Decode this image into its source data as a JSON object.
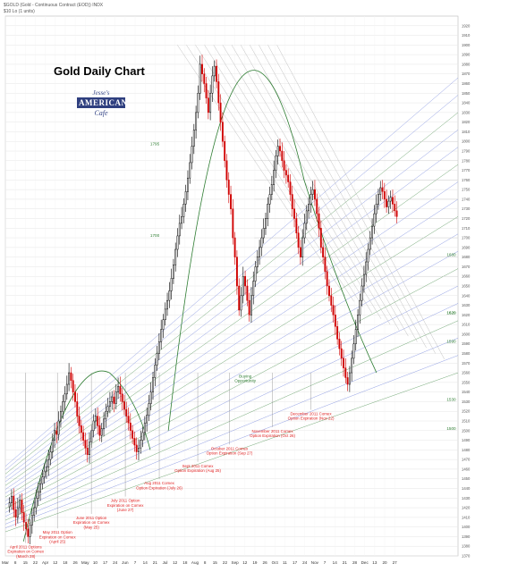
{
  "header": {
    "symbol": "$GOLD (Gold - Continuous Contract (EOD)) INDX",
    "subtitle": "$10 Lo (1 units)"
  },
  "logo": {
    "line1": "Jesse's",
    "line2": "AMERICAN",
    "line3": "Cafe"
  },
  "colors": {
    "up": "#000000",
    "down": "#d00000",
    "fan": "#5a6fd6",
    "green": "#2e7d32",
    "annotation": "#e02020",
    "grid": "#e6e6e6"
  },
  "chart_data": {
    "type": "candlestick",
    "title": "Gold Daily Chart",
    "ylim": [
      1370,
      1930
    ],
    "y_ticks": [
      1370,
      1380,
      1390,
      1400,
      1410,
      1420,
      1430,
      1440,
      1450,
      1460,
      1470,
      1480,
      1490,
      1500,
      1510,
      1520,
      1530,
      1540,
      1550,
      1560,
      1570,
      1580,
      1590,
      1600,
      1610,
      1620,
      1630,
      1640,
      1650,
      1660,
      1670,
      1680,
      1690,
      1700,
      1710,
      1720,
      1730,
      1740,
      1750,
      1760,
      1770,
      1780,
      1790,
      1800,
      1810,
      1820,
      1830,
      1840,
      1850,
      1860,
      1870,
      1880,
      1890,
      1900,
      1910,
      1920
    ],
    "x_labels": [
      "Mar",
      "8",
      "15",
      "22",
      "Apr",
      "12",
      "18",
      "26",
      "May",
      "10",
      "17",
      "24",
      "Jun",
      "7",
      "14",
      "21",
      "Jul",
      "12",
      "18",
      "Aug",
      "8",
      "15",
      "22",
      "Sep",
      "12",
      "19",
      "26",
      "Oct",
      "11",
      "17",
      "24",
      "Nov",
      "7",
      "14",
      "21",
      "28",
      "Dec",
      "13",
      "20",
      "27"
    ],
    "closes": [
      1425,
      1432,
      1418,
      1410,
      1420,
      1428,
      1415,
      1405,
      1398,
      1390,
      1402,
      1412,
      1420,
      1430,
      1436,
      1445,
      1452,
      1458,
      1462,
      1470,
      1478,
      1490,
      1500,
      1496,
      1510,
      1520,
      1530,
      1538,
      1548,
      1560,
      1552,
      1540,
      1530,
      1515,
      1505,
      1498,
      1490,
      1482,
      1475,
      1488,
      1500,
      1510,
      1515,
      1505,
      1495,
      1502,
      1512,
      1520,
      1525,
      1530,
      1535,
      1528,
      1540,
      1546,
      1538,
      1530,
      1522,
      1515,
      1508,
      1500,
      1492,
      1485,
      1478,
      1482,
      1490,
      1498,
      1508,
      1516,
      1528,
      1540,
      1555,
      1568,
      1580,
      1592,
      1605,
      1615,
      1626,
      1635,
      1645,
      1658,
      1672,
      1688,
      1702,
      1715,
      1722,
      1735,
      1748,
      1762,
      1778,
      1795,
      1812,
      1830,
      1850,
      1880,
      1870,
      1860,
      1845,
      1830,
      1850,
      1868,
      1878,
      1862,
      1840,
      1820,
      1800,
      1780,
      1760,
      1745,
      1730,
      1700,
      1680,
      1650,
      1625,
      1640,
      1660,
      1650,
      1635,
      1620,
      1640,
      1655,
      1670,
      1680,
      1690,
      1700,
      1710,
      1720,
      1735,
      1745,
      1755,
      1770,
      1785,
      1795,
      1790,
      1780,
      1770,
      1765,
      1758,
      1745,
      1730,
      1720,
      1705,
      1690,
      1680,
      1700,
      1715,
      1728,
      1735,
      1745,
      1750,
      1740,
      1725,
      1710,
      1690,
      1680,
      1665,
      1650,
      1640,
      1630,
      1620,
      1608,
      1595,
      1585,
      1575,
      1565,
      1555,
      1548,
      1560,
      1575,
      1590,
      1605,
      1620,
      1635,
      1650,
      1662,
      1675,
      1688,
      1700,
      1712,
      1725,
      1735,
      1745,
      1752,
      1748,
      1740,
      1732,
      1738,
      1742,
      1735,
      1728,
      1722
    ],
    "date_annotations": [
      {
        "text": "April 2011 Options\nExpiration on Comex\n(March 28)",
        "x": 0.045,
        "y": 1378
      },
      {
        "text": "May 2011 Option\nExpiration on Comex\n(April 25)",
        "x": 0.115,
        "y": 1393
      },
      {
        "text": "June 2011 Option\nExpiration on Comex\n(May 25)",
        "x": 0.19,
        "y": 1408
      },
      {
        "text": "July 2011 Option\nExpiration on Comex\n(June 27)",
        "x": 0.265,
        "y": 1426
      },
      {
        "text": "Aug 2011 Comex\nOption Expiration (July 26)",
        "x": 0.34,
        "y": 1444
      },
      {
        "text": "Sept 2011 Comex\nOption Expiration (Aug 25)",
        "x": 0.425,
        "y": 1462
      },
      {
        "text": "October 2011 Comex\nOption Expiration (Sep 27)",
        "x": 0.495,
        "y": 1480
      },
      {
        "text": "November 2011 Comex\nOption Expiration (Oct 26)",
        "x": 0.59,
        "y": 1498
      },
      {
        "text": "December 2011 Comex\nOption Expiration (Nov 22)",
        "x": 0.675,
        "y": 1516
      }
    ],
    "buying_label": "Buying\nOpportunity",
    "level_labels": [
      {
        "text": "1795",
        "y": 1795
      },
      {
        "text": "1700",
        "y": 1700
      },
      {
        "text": "1680",
        "y": 1680
      },
      {
        "text": "1620",
        "y": 1620
      },
      {
        "text": "1590",
        "y": 1590
      },
      {
        "text": "1620",
        "y": 1620
      },
      {
        "text": "1530",
        "y": 1530
      },
      {
        "text": "1500",
        "y": 1500
      }
    ]
  }
}
